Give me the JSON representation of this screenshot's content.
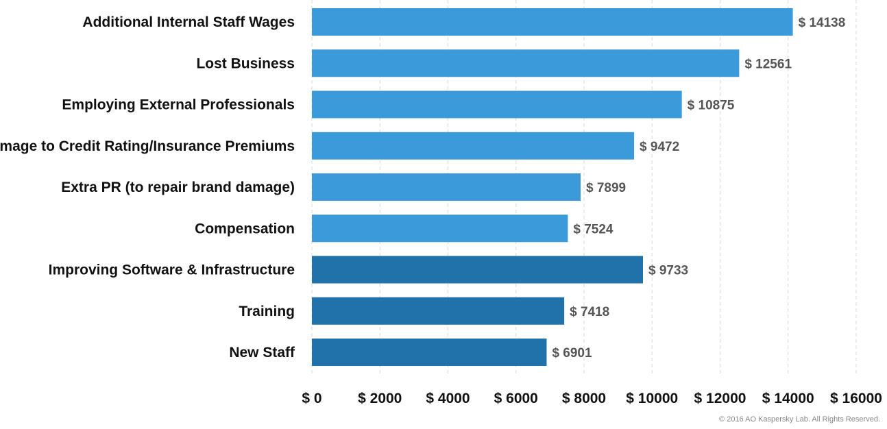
{
  "chart_data": {
    "type": "bar",
    "orientation": "horizontal",
    "categories": [
      "Additional Internal Staff Wages",
      "Lost Business",
      "Employing External Professionals",
      "Damage to Credit Rating/Insurance Premiums",
      "Extra PR (to repair brand damage)",
      "Compensation",
      "Improving Software & Infrastructure",
      "Training",
      "New Staff"
    ],
    "values": [
      14138,
      12561,
      10875,
      9472,
      7899,
      7524,
      9733,
      7418,
      6901
    ],
    "value_prefix": "$ ",
    "bar_colors": [
      "#3b9ad9",
      "#3b9ad9",
      "#3b9ad9",
      "#3b9ad9",
      "#3b9ad9",
      "#3b9ad9",
      "#2171aa",
      "#2171aa",
      "#2171aa"
    ],
    "xlim": [
      0,
      16000
    ],
    "xticks": [
      0,
      2000,
      4000,
      6000,
      8000,
      10000,
      12000,
      14000,
      16000
    ],
    "xtick_labels": [
      "$ 0",
      "$ 2000",
      "$ 4000",
      "$ 6000",
      "$ 8000",
      "$ 10000",
      "$ 12000",
      "$ 14000",
      "$ 16000"
    ],
    "grid": "vertical-dashed",
    "legend": "none"
  },
  "footer": {
    "copyright": "© 2016 AO Kaspersky Lab. All Rights Reserved."
  }
}
